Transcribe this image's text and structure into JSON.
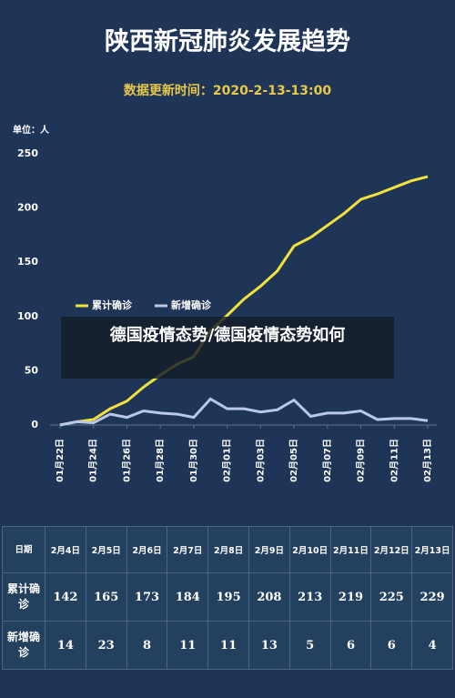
{
  "chart_data": {
    "type": "line",
    "title": "陕西新冠肺炎发展趋势",
    "subtitle": "数据更新时间：2020-2-13-13:00",
    "unit_label": "单位：人",
    "categories": [
      "01月22日",
      null,
      "01月24日",
      null,
      "01月26日",
      null,
      "01月28日",
      null,
      "01月30日",
      null,
      "02月01日",
      null,
      "02月03日",
      null,
      "02月05日",
      null,
      "02月07日",
      null,
      "02月09日",
      null,
      "02月11日",
      null,
      "02月13日"
    ],
    "series": [
      {
        "name": "累计确诊",
        "color": "#f2e33a",
        "values": [
          0,
          3,
          5,
          15,
          22,
          35,
          46,
          56,
          63,
          87,
          101,
          116,
          128,
          142,
          165,
          173,
          184,
          195,
          208,
          213,
          219,
          225,
          229
        ]
      },
      {
        "name": "新增确诊",
        "color": "#b9c8e8",
        "values": [
          0,
          3,
          2,
          10,
          7,
          13,
          11,
          10,
          7,
          24,
          15,
          15,
          12,
          14,
          23,
          8,
          11,
          11,
          13,
          5,
          6,
          6,
          4
        ]
      }
    ],
    "ylim": [
      0,
      250
    ],
    "yticks": [
      0,
      50,
      100,
      150,
      200,
      250
    ],
    "grid": false,
    "legend": "middle-left"
  },
  "table": {
    "header": [
      "日期",
      "2月4日",
      "2月5日",
      "2月6日",
      "2月7日",
      "2月8日",
      "2月9日",
      "2月10日",
      "2月11日",
      "2月12日",
      "2月13日"
    ],
    "rows": [
      [
        "累计确诊",
        142,
        165,
        173,
        184,
        195,
        208,
        213,
        219,
        225,
        229
      ],
      [
        "新增确诊",
        14,
        23,
        8,
        11,
        11,
        13,
        5,
        6,
        6,
        4
      ]
    ]
  },
  "overlay": {
    "caption": "德国疫情态势/德国疫情态势如何"
  }
}
